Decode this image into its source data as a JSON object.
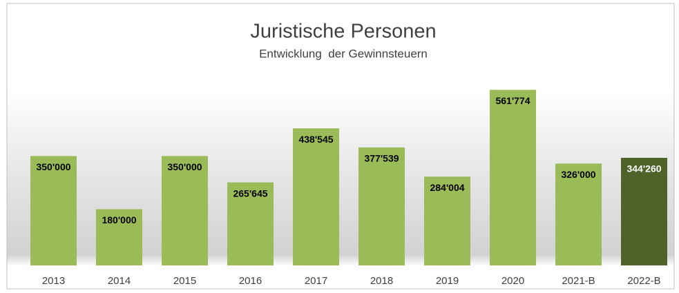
{
  "chart_data": {
    "type": "bar",
    "title": "Juristische Personen",
    "subtitle": "Entwicklung  der Gewinnsteuern",
    "categories": [
      "2013",
      "2014",
      "2015",
      "2016",
      "2017",
      "2018",
      "2019",
      "2020",
      "2021-B",
      "2022-B"
    ],
    "values": [
      350000,
      180000,
      350000,
      265645,
      438545,
      377539,
      284004,
      561774,
      326000,
      344260
    ],
    "value_labels": [
      "350'000",
      "180'000",
      "350'000",
      "265'645",
      "438'545",
      "377'539",
      "284'004",
      "561'774",
      "326'000",
      "344'260"
    ],
    "colors": [
      "#9bbb59",
      "#9bbb59",
      "#9bbb59",
      "#9bbb59",
      "#9bbb59",
      "#9bbb59",
      "#9bbb59",
      "#9bbb59",
      "#9bbb59",
      "#4f6228"
    ],
    "ylim": [
      0,
      600000
    ]
  }
}
